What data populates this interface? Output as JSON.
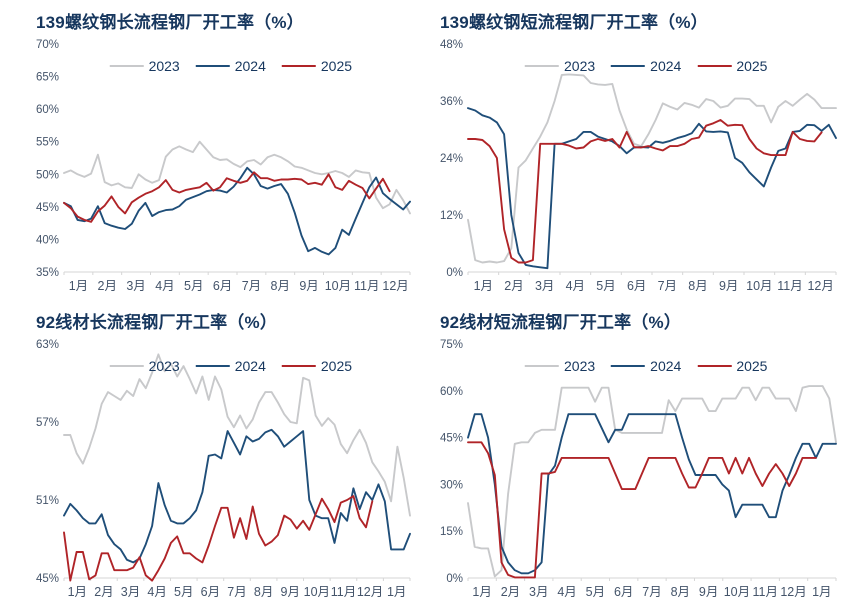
{
  "page": {
    "background": "#ffffff"
  },
  "colors": {
    "title": "#17375e",
    "axis_label": "#44546a",
    "axis_line": "#d6d6d6",
    "series_2023": "#c8c9cb",
    "series_2024": "#1f4e79",
    "series_2025": "#b02428"
  },
  "legend_labels": [
    "2023",
    "2024",
    "2025"
  ],
  "chart_data": [
    {
      "type": "line",
      "title": "139螺纹钢长流程钢厂开工率（%）",
      "xlabel": "",
      "ylabel": "",
      "ylim": [
        35,
        70
      ],
      "yticks": [
        35,
        40,
        45,
        50,
        55,
        60,
        65,
        70
      ],
      "ytick_suffix": "%",
      "grid": false,
      "legend_position": "top",
      "x_months": [
        "1月",
        "2月",
        "3月",
        "4月",
        "5月",
        "6月",
        "7月",
        "8月",
        "9月",
        "10月",
        "11月",
        "12月"
      ],
      "slots": 52,
      "series": [
        {
          "name": "2023",
          "color": "#c8c9cb",
          "values": [
            50.2,
            50.6,
            50.0,
            49.6,
            50.1,
            53.0,
            48.8,
            48.3,
            48.6,
            48.0,
            47.9,
            50.0,
            49.2,
            48.7,
            49.1,
            52.7,
            53.8,
            54.3,
            53.8,
            53.4,
            55.0,
            53.8,
            52.6,
            52.2,
            52.3,
            51.6,
            51.1,
            52.0,
            52.2,
            51.5,
            52.6,
            53.0,
            52.6,
            52.0,
            51.2,
            51.0,
            50.6,
            50.2,
            50.0,
            50.2,
            50.5,
            50.2,
            49.6,
            50.6,
            50.3,
            50.2,
            46.4,
            44.8,
            45.4,
            47.6,
            46.0,
            44.0
          ]
        },
        {
          "name": "2024",
          "color": "#1f4e79",
          "values": [
            45.6,
            45.1,
            43.0,
            42.8,
            43.2,
            45.1,
            42.5,
            42.1,
            41.8,
            41.6,
            42.4,
            44.4,
            45.6,
            43.6,
            44.2,
            44.5,
            44.6,
            45.1,
            46.1,
            46.5,
            46.9,
            47.4,
            47.6,
            47.5,
            47.2,
            48.1,
            49.4,
            51.0,
            50.0,
            48.2,
            47.8,
            48.2,
            48.5,
            47.0,
            44.1,
            40.6,
            38.2,
            38.7,
            38.1,
            37.7,
            38.7,
            41.5,
            40.7,
            43.2,
            45.6,
            48.0,
            49.5,
            47.1,
            46.2,
            45.4,
            44.6,
            45.8
          ]
        },
        {
          "name": "2025",
          "color": "#b02428",
          "values": [
            45.6,
            44.8,
            43.5,
            43.0,
            42.7,
            44.3,
            45.2,
            46.6,
            45.0,
            44.0,
            45.7,
            46.4,
            47.0,
            47.4,
            48.0,
            49.1,
            47.6,
            47.2,
            47.6,
            47.8,
            48.0,
            48.7,
            47.5,
            48.0,
            49.4,
            49.0,
            48.7,
            49.0,
            50.3,
            49.4,
            49.4,
            49.0,
            49.2,
            49.2,
            49.3,
            49.2,
            48.5,
            48.7,
            48.4,
            50.0,
            48.0,
            47.6,
            49.0,
            48.4,
            47.9,
            46.3,
            47.8,
            49.3,
            47.4
          ]
        }
      ]
    },
    {
      "type": "line",
      "title": "139螺纹钢短流程钢厂开工率（%）",
      "xlabel": "",
      "ylabel": "",
      "ylim": [
        0,
        48
      ],
      "yticks": [
        0,
        12,
        24,
        36,
        48
      ],
      "ytick_suffix": "%",
      "grid": false,
      "legend_position": "top",
      "x_months": [
        "1月",
        "2月",
        "3月",
        "4月",
        "5月",
        "6月",
        "7月",
        "8月",
        "9月",
        "10月",
        "11月",
        "12月"
      ],
      "slots": 52,
      "series": [
        {
          "name": "2023",
          "color": "#c8c9cb",
          "values": [
            11.0,
            2.5,
            2.0,
            2.2,
            2.0,
            2.3,
            5.0,
            22.0,
            23.5,
            26.0,
            28.5,
            31.5,
            36.0,
            41.5,
            41.6,
            41.5,
            41.4,
            39.8,
            39.5,
            39.4,
            39.6,
            34.0,
            30.0,
            27.0,
            26.5,
            29.0,
            32.0,
            35.5,
            34.8,
            34.2,
            35.6,
            35.2,
            34.6,
            36.4,
            36.0,
            34.6,
            35.0,
            36.5,
            36.5,
            36.4,
            35.0,
            35.0,
            31.5,
            34.8,
            36.0,
            35.0,
            36.3,
            37.5,
            36.3,
            34.5,
            34.5,
            34.5
          ]
        },
        {
          "name": "2024",
          "color": "#1f4e79",
          "values": [
            34.5,
            34.0,
            33.0,
            32.5,
            31.5,
            29.0,
            12.0,
            4.0,
            1.5,
            1.2,
            1.0,
            0.8,
            27.0,
            27.0,
            27.5,
            28.0,
            29.5,
            29.5,
            28.5,
            28.0,
            27.5,
            26.5,
            25.0,
            26.2,
            26.3,
            26.2,
            27.5,
            27.2,
            27.6,
            28.2,
            28.6,
            29.2,
            31.2,
            29.6,
            29.5,
            29.6,
            29.4,
            24.0,
            23.0,
            21.0,
            19.5,
            18.0,
            22.0,
            25.5,
            26.0,
            29.5,
            29.7,
            31.0,
            30.9,
            29.7,
            31.0,
            28.2
          ]
        },
        {
          "name": "2025",
          "color": "#b02428",
          "values": [
            28.0,
            28.0,
            27.8,
            26.5,
            24.0,
            9.0,
            3.0,
            2.0,
            2.0,
            2.5,
            27.0,
            27.0,
            27.0,
            27.0,
            26.6,
            26.0,
            26.2,
            27.5,
            28.0,
            27.6,
            28.0,
            26.2,
            29.5,
            26.3,
            26.2,
            26.5,
            26.0,
            25.6,
            26.5,
            26.5,
            27.0,
            28.0,
            28.3,
            30.8,
            31.3,
            32.0,
            30.8,
            31.0,
            30.9,
            28.0,
            26.0,
            25.0,
            24.6,
            24.6,
            24.6,
            29.5,
            28.0,
            27.6,
            27.5,
            29.4
          ]
        }
      ]
    },
    {
      "type": "line",
      "title": "92线材长流程钢厂开工率（%）",
      "xlabel": "",
      "ylabel": "",
      "ylim": [
        45,
        63
      ],
      "yticks": [
        45,
        51,
        57,
        63
      ],
      "ytick_suffix": "%",
      "grid": false,
      "legend_position": "top",
      "x_months": [
        "1月",
        "2月",
        "3月",
        "4月",
        "5月",
        "6月",
        "7月",
        "8月",
        "9月",
        "10月",
        "11月",
        "12月",
        "1月"
      ],
      "slots": 56,
      "series": [
        {
          "name": "2023",
          "color": "#c8c9cb",
          "values": [
            56.0,
            56.0,
            54.6,
            53.8,
            55.0,
            56.5,
            58.4,
            59.3,
            59.0,
            58.7,
            59.4,
            59.0,
            60.3,
            59.6,
            60.8,
            62.2,
            60.9,
            61.5,
            60.5,
            61.3,
            60.3,
            59.2,
            60.5,
            58.7,
            60.5,
            59.5,
            57.4,
            56.6,
            57.5,
            56.5,
            57.2,
            58.5,
            59.3,
            59.3,
            58.5,
            57.6,
            57.0,
            56.9,
            60.4,
            60.2,
            57.5,
            56.7,
            57.3,
            56.8,
            55.3,
            54.6,
            55.6,
            56.4,
            55.4,
            53.9,
            53.2,
            52.4,
            50.9,
            55.1,
            52.7,
            49.8
          ]
        },
        {
          "name": "2024",
          "color": "#1f4e79",
          "values": [
            49.8,
            50.7,
            50.2,
            49.6,
            49.2,
            49.2,
            49.9,
            48.3,
            47.6,
            47.2,
            46.4,
            46.2,
            46.5,
            47.6,
            49.0,
            52.3,
            50.6,
            49.4,
            49.2,
            49.2,
            49.6,
            50.2,
            51.6,
            54.4,
            54.5,
            54.2,
            56.3,
            55.4,
            54.5,
            55.9,
            55.5,
            55.7,
            56.2,
            56.4,
            55.9,
            55.1,
            55.5,
            55.9,
            56.3,
            51.0,
            49.8,
            49.6,
            49.6,
            47.7,
            50.0,
            49.4,
            51.9,
            50.3,
            51.6,
            51.0,
            52.2,
            50.9,
            47.2,
            47.2,
            47.2,
            48.4
          ]
        },
        {
          "name": "2025",
          "color": "#b02428",
          "values": [
            48.5,
            44.8,
            47.0,
            47.0,
            44.9,
            45.2,
            46.9,
            46.9,
            45.6,
            45.6,
            45.6,
            45.8,
            46.6,
            45.2,
            44.8,
            45.6,
            46.5,
            47.7,
            48.2,
            46.9,
            46.9,
            46.5,
            46.2,
            47.5,
            49.0,
            50.4,
            50.4,
            48.1,
            49.6,
            48.0,
            50.5,
            48.4,
            47.5,
            47.8,
            48.3,
            49.8,
            49.5,
            48.8,
            49.4,
            48.7,
            49.9,
            51.1,
            50.3,
            49.3,
            50.8,
            51.0,
            51.3,
            49.6,
            48.9,
            50.9
          ]
        }
      ]
    },
    {
      "type": "line",
      "title": "92线材短流程钢厂开工率（%）",
      "xlabel": "",
      "ylabel": "",
      "ylim": [
        0,
        75
      ],
      "yticks": [
        0,
        15,
        30,
        45,
        60,
        75
      ],
      "ytick_suffix": "%",
      "grid": false,
      "legend_position": "top",
      "x_months": [
        "1月",
        "2月",
        "3月",
        "4月",
        "5月",
        "6月",
        "7月",
        "8月",
        "9月",
        "10月",
        "11月",
        "12月",
        "1月"
      ],
      "slots": 56,
      "series": [
        {
          "name": "2023",
          "color": "#c8c9cb",
          "values": [
            24.0,
            10.0,
            9.5,
            9.5,
            0.5,
            2.5,
            27.0,
            43.0,
            43.5,
            43.5,
            46.5,
            47.5,
            47.5,
            47.5,
            61.0,
            61.0,
            61.0,
            61.0,
            61.0,
            56.5,
            61.0,
            61.0,
            47.5,
            46.5,
            46.5,
            46.5,
            46.5,
            46.5,
            46.5,
            46.5,
            57.0,
            53.5,
            57.5,
            57.5,
            57.5,
            57.5,
            53.5,
            53.5,
            57.5,
            57.5,
            57.5,
            61.0,
            61.0,
            57.0,
            61.0,
            61.0,
            57.5,
            57.5,
            57.5,
            53.5,
            61.0,
            61.5,
            61.5,
            61.5,
            57.5,
            43.5
          ]
        },
        {
          "name": "2024",
          "color": "#1f4e79",
          "values": [
            45.0,
            52.5,
            52.5,
            45.0,
            30.0,
            10.0,
            5.0,
            2.5,
            1.5,
            1.5,
            2.5,
            5.0,
            33.0,
            36.0,
            45.0,
            52.5,
            52.5,
            52.5,
            52.5,
            52.5,
            48.0,
            43.5,
            47.5,
            47.5,
            52.5,
            52.5,
            52.5,
            52.5,
            52.5,
            52.5,
            52.5,
            52.5,
            45.0,
            38.0,
            33.0,
            33.0,
            33.0,
            33.0,
            30.0,
            28.0,
            19.5,
            23.5,
            23.5,
            23.5,
            23.5,
            19.5,
            19.5,
            28.0,
            33.0,
            38.5,
            43.0,
            43.0,
            38.5,
            43.0,
            43.0,
            43.0
          ]
        },
        {
          "name": "2025",
          "color": "#b02428",
          "values": [
            43.5,
            43.5,
            43.5,
            40.0,
            33.0,
            5.0,
            1.0,
            0.2,
            0.2,
            0.2,
            0.2,
            33.5,
            33.5,
            34.0,
            38.5,
            38.5,
            38.5,
            38.5,
            38.5,
            38.5,
            38.5,
            38.5,
            33.5,
            28.5,
            28.5,
            28.5,
            33.5,
            38.5,
            38.5,
            38.5,
            38.5,
            38.5,
            33.5,
            29.0,
            29.0,
            33.5,
            38.5,
            38.5,
            38.5,
            33.5,
            38.5,
            33.5,
            38.5,
            33.5,
            29.5,
            33.5,
            36.5,
            33.5,
            29.5,
            33.5,
            38.5,
            38.5,
            38.5
          ]
        }
      ]
    }
  ]
}
